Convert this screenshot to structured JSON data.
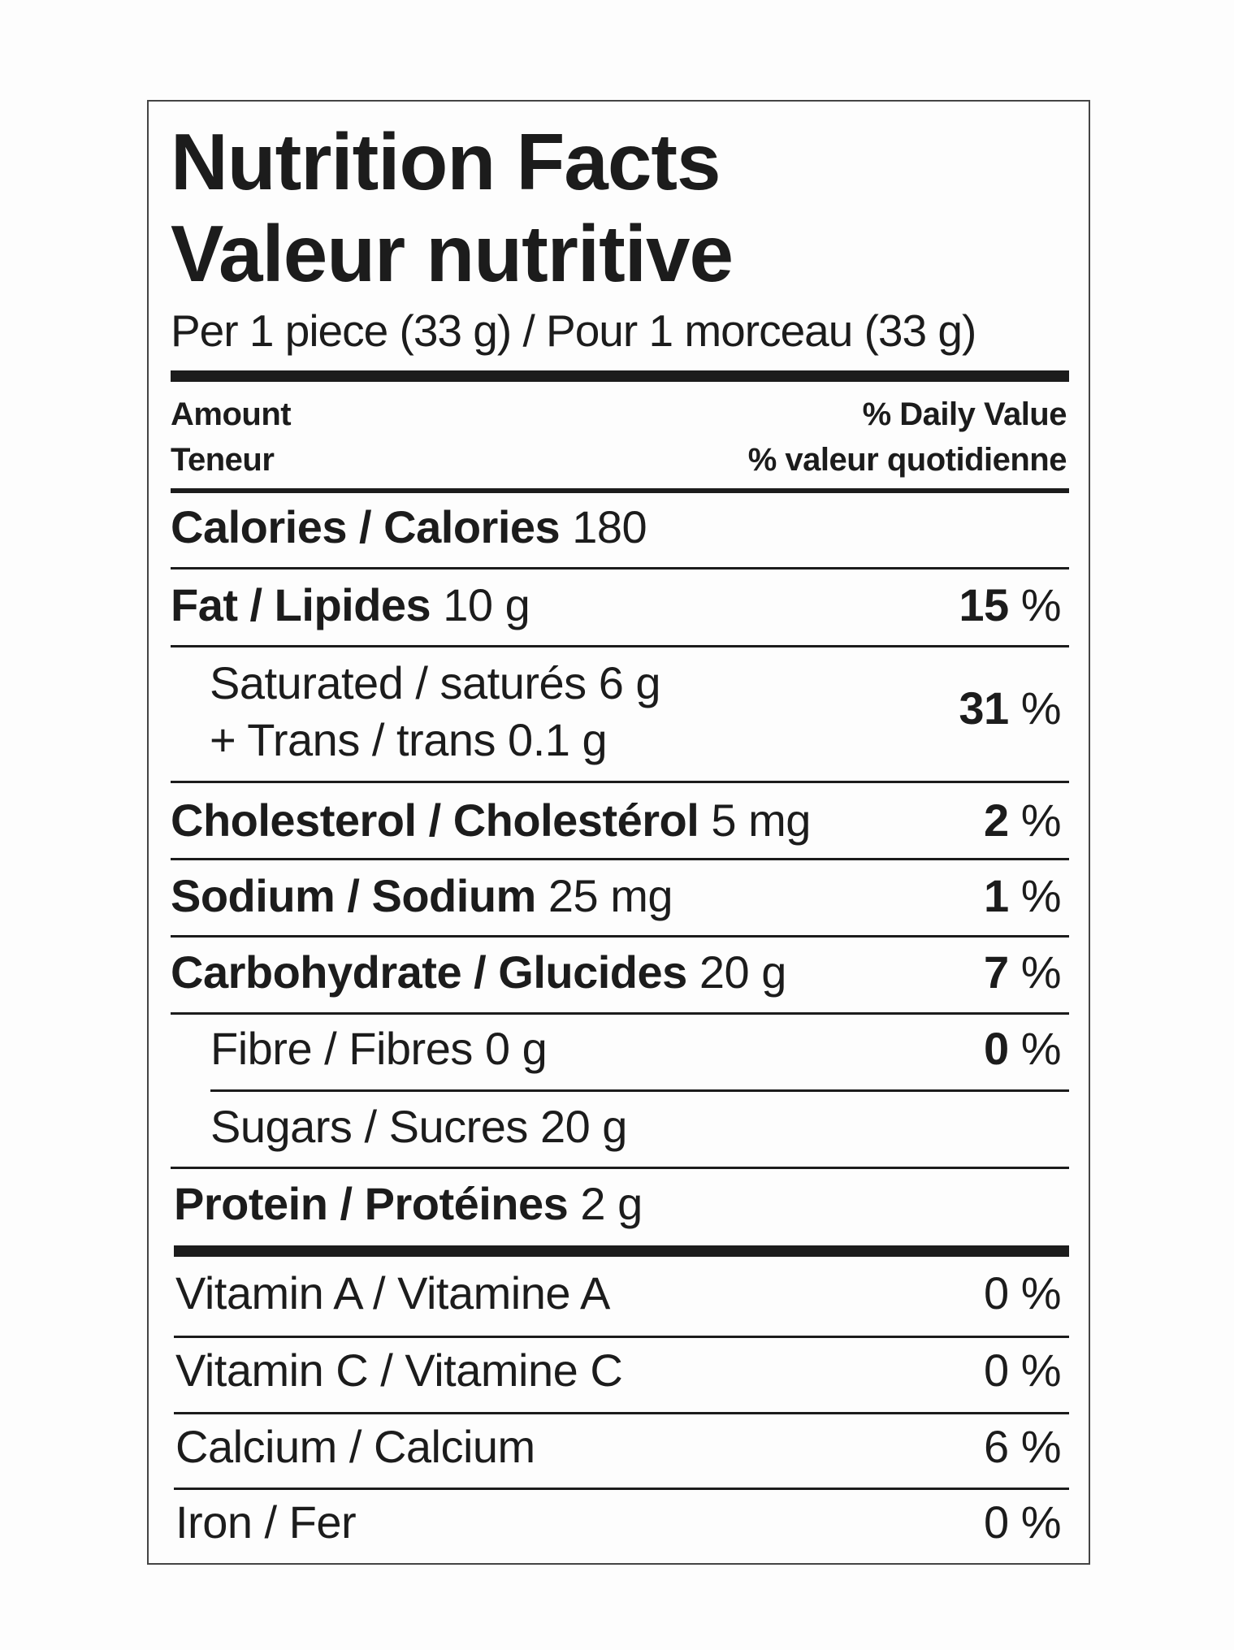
{
  "title_en": "Nutrition Facts",
  "title_fr": "Valeur nutritive",
  "serving": "Per 1 piece (33 g) / Pour 1 morceau (33 g)",
  "header": {
    "amount_en": "Amount",
    "amount_fr": "Teneur",
    "dv_en": "% Daily Value",
    "dv_fr": "% valeur quotidienne"
  },
  "calories": {
    "label": "Calories / Calories",
    "value": "180"
  },
  "nutrients": {
    "fat": {
      "label": "Fat / Lipides",
      "amount": "10 g",
      "dv": "15",
      "unit": " %"
    },
    "saturated": {
      "label": "Saturated / saturés 6 g",
      "trans": "+ Trans / trans 0.1 g",
      "dv": "31",
      "unit": " %"
    },
    "cholesterol": {
      "label": "Cholesterol / Cholestérol",
      "amount": "5 mg",
      "dv": "2",
      "unit": " %"
    },
    "sodium": {
      "label": "Sodium / Sodium",
      "amount": "25 mg",
      "dv": "1",
      "unit": " %"
    },
    "carbohydrate": {
      "label": "Carbohydrate / Glucides",
      "amount": "20 g",
      "dv": "7",
      "unit": " %"
    },
    "fibre": {
      "label": "Fibre / Fibres 0 g",
      "dv": "0",
      "unit": " %"
    },
    "sugars": {
      "label": "Sugars / Sucres 20 g"
    },
    "protein": {
      "label": "Protein / Protéines",
      "amount": "2 g"
    }
  },
  "vitamins": [
    {
      "label": "Vitamin A / Vitamine A",
      "dv": "0 %"
    },
    {
      "label": "Vitamin C / Vitamine C",
      "dv": "0 %"
    },
    {
      "label": "Calcium / Calcium",
      "dv": "6 %"
    },
    {
      "label": "Iron / Fer",
      "dv": "0 %"
    }
  ]
}
